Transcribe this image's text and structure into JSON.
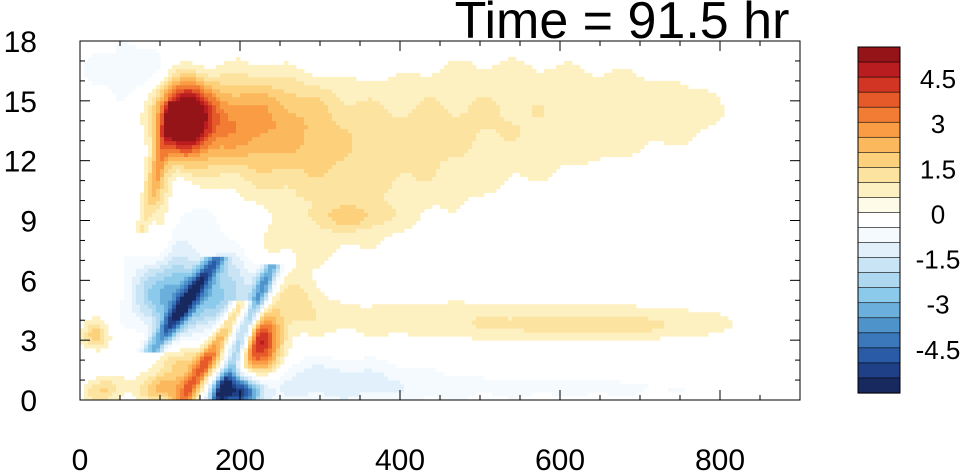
{
  "chart_data": {
    "type": "heatmap",
    "title": "Time = 91.5 hr",
    "xlabel": "",
    "ylabel": "",
    "xlim": [
      0,
      900
    ],
    "ylim": [
      0,
      18
    ],
    "x_ticks": [
      "0",
      "200",
      "400",
      "600",
      "800"
    ],
    "y_ticks": [
      "0",
      "3",
      "6",
      "9",
      "12",
      "15",
      "18"
    ],
    "colorbar": {
      "levels": [
        -5.5,
        -5,
        -4.5,
        -4,
        -3.5,
        -3,
        -2.5,
        -2,
        -1.5,
        -1,
        -0.5,
        0,
        0.5,
        1,
        1.5,
        2,
        2.5,
        3,
        3.5,
        4,
        4.5,
        5,
        5.5
      ],
      "colors": [
        "#17295f",
        "#1f3f86",
        "#2a5ba6",
        "#3a78bb",
        "#4f93cb",
        "#6bb0dc",
        "#8ccaeb",
        "#aed8f0",
        "#c9e5f5",
        "#e1f0fa",
        "#f4fafd",
        "#ffffff",
        "#fefbe8",
        "#fdf0c1",
        "#fde3a0",
        "#fdd07c",
        "#fcb85d",
        "#f99c43",
        "#f27c33",
        "#e65a2a",
        "#d33525",
        "#ba1d20",
        "#951418"
      ],
      "tick_labels": [
        "4.5",
        "3",
        "1.5",
        "0",
        "-1.5",
        "-3",
        "-4.5"
      ],
      "tick_values": [
        4.5,
        3,
        1.5,
        0,
        -1.5,
        -3,
        -4.5
      ]
    },
    "features": [
      {
        "x": 130,
        "y": 14.2,
        "sx": 22,
        "sy": 1.3,
        "v": 6.0
      },
      {
        "x": 180,
        "y": 14.0,
        "sx": 45,
        "sy": 1.6,
        "v": 2.2
      },
      {
        "x": 260,
        "y": 14.0,
        "sx": 50,
        "sy": 1.8,
        "v": 1.2
      },
      {
        "x": 420,
        "y": 13.5,
        "sx": 150,
        "sy": 2.8,
        "v": 0.8
      },
      {
        "x": 680,
        "y": 14.5,
        "sx": 180,
        "sy": 2.0,
        "v": 0.6
      },
      {
        "x": 320,
        "y": 11.0,
        "sx": 90,
        "sy": 1.8,
        "v": 0.7
      },
      {
        "x": 340,
        "y": 9.2,
        "sx": 35,
        "sy": 0.5,
        "v": 1.0
      },
      {
        "x": 260,
        "y": 7.8,
        "sx": 80,
        "sy": 1.0,
        "v": 0.5
      },
      {
        "x": 100,
        "y": 10.0,
        "sx": 10,
        "sy": 2.0,
        "v": 1.3
      },
      {
        "x": 115,
        "y": 5.8,
        "sx": 35,
        "sy": 1.0,
        "v": -2.6
      },
      {
        "x": 125,
        "y": 4.3,
        "sx": 40,
        "sy": 0.9,
        "v": -2.2
      },
      {
        "x": 190,
        "y": 5.5,
        "sx": 25,
        "sy": 1.4,
        "v": -2.0
      },
      {
        "x": 140,
        "y": 8.5,
        "sx": 40,
        "sy": 1.2,
        "v": -1.0
      },
      {
        "x": 150,
        "y": 1.8,
        "sx": 40,
        "sy": 0.6,
        "v": 1.8
      },
      {
        "x": 110,
        "y": 0.6,
        "sx": 25,
        "sy": 0.5,
        "v": 2.5
      },
      {
        "x": 30,
        "y": 0.5,
        "sx": 18,
        "sy": 0.5,
        "v": 1.5
      },
      {
        "x": 20,
        "y": 3.2,
        "sx": 12,
        "sy": 0.5,
        "v": 1.6
      },
      {
        "x": 225,
        "y": 2.8,
        "sx": 18,
        "sy": 1.2,
        "v": 4.6
      },
      {
        "x": 200,
        "y": 0.4,
        "sx": 20,
        "sy": 0.6,
        "v": -4.8
      },
      {
        "x": 300,
        "y": 1.0,
        "sx": 90,
        "sy": 0.9,
        "v": -1.2
      },
      {
        "x": 600,
        "y": 0.6,
        "sx": 220,
        "sy": 0.6,
        "v": -0.6
      },
      {
        "x": 520,
        "y": 4.0,
        "sx": 250,
        "sy": 0.8,
        "v": 0.9
      },
      {
        "x": 650,
        "y": 3.7,
        "sx": 90,
        "sy": 0.4,
        "v": 0.6
      },
      {
        "x": 600,
        "y": 6.0,
        "sx": 60,
        "sy": 0.5,
        "v": -0.5
      },
      {
        "x": 80,
        "y": 16.5,
        "sx": 60,
        "sy": 1.2,
        "v": -0.9
      },
      {
        "x": 330,
        "y": 17.2,
        "sx": 60,
        "sy": 0.8,
        "v": -0.6
      },
      {
        "x": 270,
        "y": 5.2,
        "sx": 25,
        "sy": 0.9,
        "v": 1.0
      }
    ],
    "streaks": [
      {
        "x0": 100,
        "x1": 165,
        "y0": 3.0,
        "y1": 6.8,
        "w": 10,
        "v": -3.2
      },
      {
        "x0": 175,
        "x1": 235,
        "y0": 0.3,
        "y1": 6.2,
        "w": 9,
        "v": -3.6
      },
      {
        "x0": 135,
        "x1": 195,
        "y0": 0.4,
        "y1": 4.5,
        "w": 9,
        "v": 2.6
      },
      {
        "x0": 80,
        "x1": 115,
        "y0": 9.0,
        "y1": 14.5,
        "w": 7,
        "v": 1.3
      }
    ]
  }
}
